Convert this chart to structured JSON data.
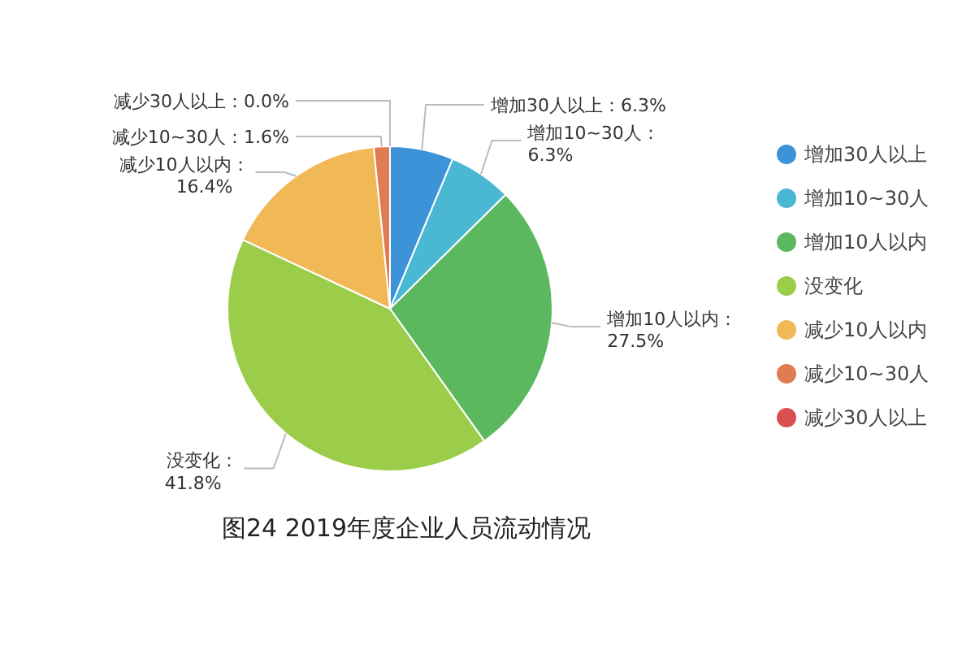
{
  "chart_data": {
    "type": "pie",
    "title": "图24  2019年度企业人员流动情况",
    "categories": [
      "增加30人以上",
      "增加10~30人",
      "增加10人以内",
      "没变化",
      "减少10人以内",
      "减少10~30人",
      "减少30人以上"
    ],
    "values": [
      6.3,
      6.3,
      27.5,
      41.8,
      16.4,
      1.6,
      0.0
    ],
    "value_labels": [
      "：6.3%",
      "：6.3%",
      "：27.5%",
      "：41.8%",
      "：16.4%",
      "：1.6%",
      "：0.0%"
    ],
    "colors": [
      "#3d93d8",
      "#4bb8d3",
      "#5cb85f",
      "#9bcc4a",
      "#f1b856",
      "#e07c52",
      "#da4f4f"
    ],
    "legend": "right"
  }
}
